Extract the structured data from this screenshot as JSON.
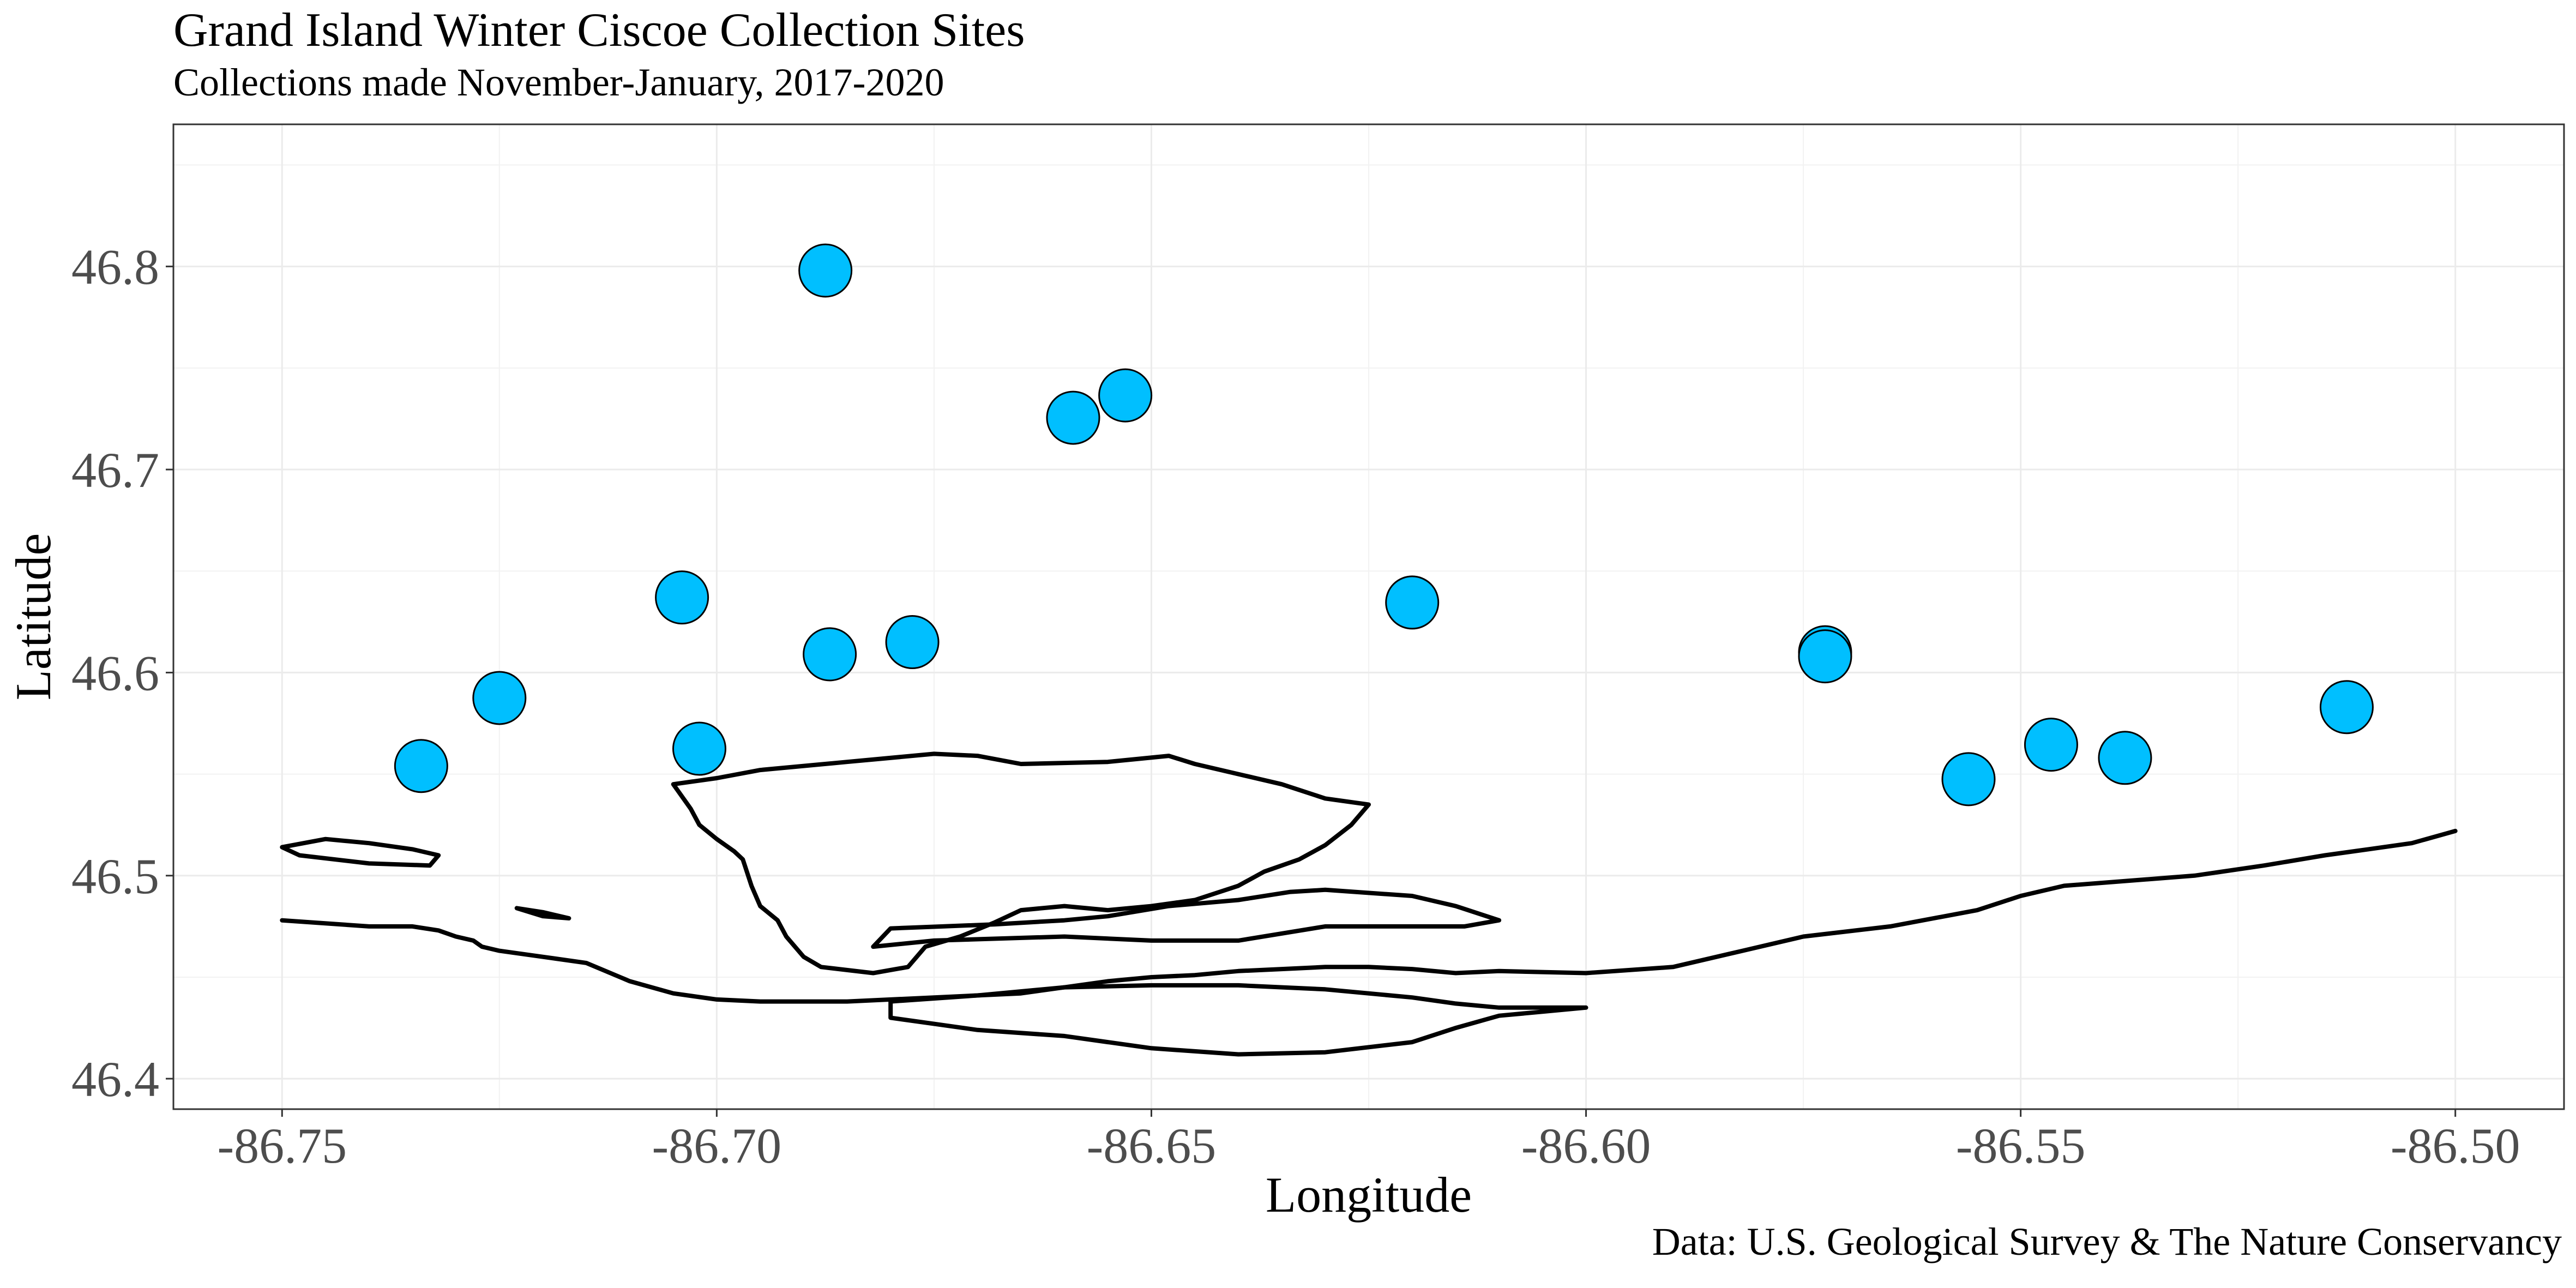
{
  "chart_data": {
    "type": "scatter",
    "title": "Grand Island Winter Ciscoe Collection Sites",
    "subtitle": "Collections made November-January, 2017-2020",
    "caption": "Data: U.S. Geological Survey & The Nature Conservancy",
    "xlabel": "Longitude",
    "ylabel": "Latitude",
    "xlim": [
      -86.7625,
      -86.4875
    ],
    "ylim": [
      46.385,
      46.87
    ],
    "x_ticks": [
      -86.75,
      -86.7,
      -86.65,
      -86.6,
      -86.55,
      -86.5
    ],
    "x_tick_labels": [
      "-86.75",
      "-86.70",
      "-86.65",
      "-86.60",
      "-86.55",
      "-86.50"
    ],
    "y_ticks": [
      46.4,
      46.5,
      46.6,
      46.7,
      46.8
    ],
    "y_tick_labels": [
      "46.4",
      "46.5",
      "46.6",
      "46.7",
      "46.8"
    ],
    "grid": true,
    "point_color": "#00bfff",
    "points": [
      {
        "x": -86.734,
        "y": 46.554
      },
      {
        "x": -86.725,
        "y": 46.5875
      },
      {
        "x": -86.704,
        "y": 46.637
      },
      {
        "x": -86.702,
        "y": 46.5625
      },
      {
        "x": -86.6875,
        "y": 46.798
      },
      {
        "x": -86.687,
        "y": 46.609
      },
      {
        "x": -86.6775,
        "y": 46.615
      },
      {
        "x": -86.659,
        "y": 46.7255
      },
      {
        "x": -86.653,
        "y": 46.7365
      },
      {
        "x": -86.62,
        "y": 46.6345
      },
      {
        "x": -86.5725,
        "y": 46.61
      },
      {
        "x": -86.5725,
        "y": 46.608
      },
      {
        "x": -86.556,
        "y": 46.5475
      },
      {
        "x": -86.5465,
        "y": 46.5645
      },
      {
        "x": -86.538,
        "y": 46.558
      },
      {
        "x": -86.5125,
        "y": 46.583
      }
    ],
    "outlines": [
      {
        "name": "mainland-shoreline",
        "points": [
          [
            -86.75,
            46.478
          ],
          [
            -86.74,
            46.475
          ],
          [
            -86.735,
            46.475
          ],
          [
            -86.732,
            46.473
          ],
          [
            -86.73,
            46.47
          ],
          [
            -86.728,
            46.468
          ],
          [
            -86.727,
            46.465
          ],
          [
            -86.725,
            46.463
          ],
          [
            -86.72,
            46.46
          ],
          [
            -86.715,
            46.457
          ],
          [
            -86.71,
            46.448
          ],
          [
            -86.705,
            46.442
          ],
          [
            -86.7,
            46.439
          ],
          [
            -86.695,
            46.438
          ],
          [
            -86.685,
            46.438
          ],
          [
            -86.675,
            46.44
          ],
          [
            -86.665,
            46.442
          ],
          [
            -86.66,
            46.445
          ],
          [
            -86.655,
            46.448
          ],
          [
            -86.65,
            46.45
          ],
          [
            -86.645,
            46.451
          ],
          [
            -86.64,
            46.453
          ],
          [
            -86.635,
            46.454
          ],
          [
            -86.63,
            46.455
          ],
          [
            -86.625,
            46.455
          ],
          [
            -86.62,
            46.454
          ],
          [
            -86.615,
            46.452
          ],
          [
            -86.61,
            46.453
          ],
          [
            -86.6,
            46.452
          ],
          [
            -86.59,
            46.455
          ],
          [
            -86.582,
            46.463
          ],
          [
            -86.575,
            46.47
          ],
          [
            -86.565,
            46.475
          ],
          [
            -86.555,
            46.483
          ],
          [
            -86.55,
            46.49
          ],
          [
            -86.545,
            46.495
          ],
          [
            -86.53,
            46.5
          ],
          [
            -86.522,
            46.505
          ],
          [
            -86.515,
            46.51
          ],
          [
            -86.51,
            46.513
          ],
          [
            -86.505,
            46.516
          ],
          [
            -86.5,
            46.522
          ]
        ]
      },
      {
        "name": "grand-island",
        "points": [
          [
            -86.705,
            46.545
          ],
          [
            -86.7,
            46.548
          ],
          [
            -86.695,
            46.552
          ],
          [
            -86.685,
            46.556
          ],
          [
            -86.675,
            46.56
          ],
          [
            -86.67,
            46.559
          ],
          [
            -86.665,
            46.555
          ],
          [
            -86.655,
            46.556
          ],
          [
            -86.648,
            46.559
          ],
          [
            -86.645,
            46.555
          ],
          [
            -86.64,
            46.55
          ],
          [
            -86.635,
            46.545
          ],
          [
            -86.63,
            46.538
          ],
          [
            -86.625,
            46.535
          ],
          [
            -86.627,
            46.525
          ],
          [
            -86.63,
            46.515
          ],
          [
            -86.633,
            46.508
          ],
          [
            -86.637,
            46.502
          ],
          [
            -86.64,
            46.495
          ],
          [
            -86.645,
            46.488
          ],
          [
            -86.65,
            46.485
          ],
          [
            -86.655,
            46.483
          ],
          [
            -86.66,
            46.485
          ],
          [
            -86.665,
            46.483
          ],
          [
            -86.668,
            46.477
          ],
          [
            -86.672,
            46.47
          ],
          [
            -86.676,
            46.465
          ],
          [
            -86.678,
            46.455
          ],
          [
            -86.682,
            46.452
          ],
          [
            -86.688,
            46.455
          ],
          [
            -86.69,
            46.46
          ],
          [
            -86.692,
            46.47
          ],
          [
            -86.693,
            46.478
          ],
          [
            -86.695,
            46.485
          ],
          [
            -86.696,
            46.495
          ],
          [
            -86.697,
            46.508
          ],
          [
            -86.698,
            46.512
          ],
          [
            -86.7,
            46.518
          ],
          [
            -86.702,
            46.525
          ],
          [
            -86.703,
            46.533
          ],
          [
            -86.705,
            46.545
          ]
        ]
      },
      {
        "name": "inner-bay-outline",
        "points": [
          [
            -86.682,
            46.465
          ],
          [
            -86.675,
            46.468
          ],
          [
            -86.66,
            46.47
          ],
          [
            -86.65,
            46.468
          ],
          [
            -86.64,
            46.468
          ],
          [
            -86.63,
            46.475
          ],
          [
            -86.622,
            46.475
          ],
          [
            -86.614,
            46.475
          ],
          [
            -86.61,
            46.478
          ],
          [
            -86.615,
            46.485
          ],
          [
            -86.62,
            46.49
          ],
          [
            -86.63,
            46.493
          ],
          [
            -86.634,
            46.492
          ],
          [
            -86.64,
            46.488
          ],
          [
            -86.648,
            46.485
          ],
          [
            -86.655,
            46.48
          ],
          [
            -86.66,
            46.478
          ],
          [
            -86.668,
            46.476
          ],
          [
            -86.674,
            46.475
          ],
          [
            -86.68,
            46.474
          ],
          [
            -86.682,
            46.465
          ]
        ]
      },
      {
        "name": "lower-lobe",
        "points": [
          [
            -86.68,
            46.438
          ],
          [
            -86.68,
            46.43
          ],
          [
            -86.675,
            46.427
          ],
          [
            -86.67,
            46.424
          ],
          [
            -86.66,
            46.421
          ],
          [
            -86.65,
            46.415
          ],
          [
            -86.64,
            46.412
          ],
          [
            -86.63,
            46.413
          ],
          [
            -86.62,
            46.418
          ],
          [
            -86.615,
            46.425
          ],
          [
            -86.61,
            46.431
          ],
          [
            -86.605,
            46.433
          ],
          [
            -86.6,
            46.435
          ],
          [
            -86.61,
            46.435
          ],
          [
            -86.615,
            46.437
          ],
          [
            -86.62,
            46.44
          ],
          [
            -86.63,
            46.444
          ],
          [
            -86.64,
            46.446
          ],
          [
            -86.65,
            46.446
          ],
          [
            -86.66,
            46.445
          ],
          [
            -86.67,
            46.441
          ],
          [
            -86.68,
            46.438
          ]
        ]
      },
      {
        "name": "small-island-west",
        "points": [
          [
            -86.75,
            46.514
          ],
          [
            -86.745,
            46.518
          ],
          [
            -86.74,
            46.516
          ],
          [
            -86.735,
            46.513
          ],
          [
            -86.732,
            46.51
          ],
          [
            -86.733,
            46.505
          ],
          [
            -86.74,
            46.506
          ],
          [
            -86.748,
            46.51
          ],
          [
            -86.75,
            46.514
          ]
        ]
      },
      {
        "name": "small-island-middle",
        "points": [
          [
            -86.723,
            46.484
          ],
          [
            -86.72,
            46.482
          ],
          [
            -86.717,
            46.479
          ],
          [
            -86.72,
            46.48
          ],
          [
            -86.723,
            46.484
          ]
        ]
      }
    ]
  }
}
